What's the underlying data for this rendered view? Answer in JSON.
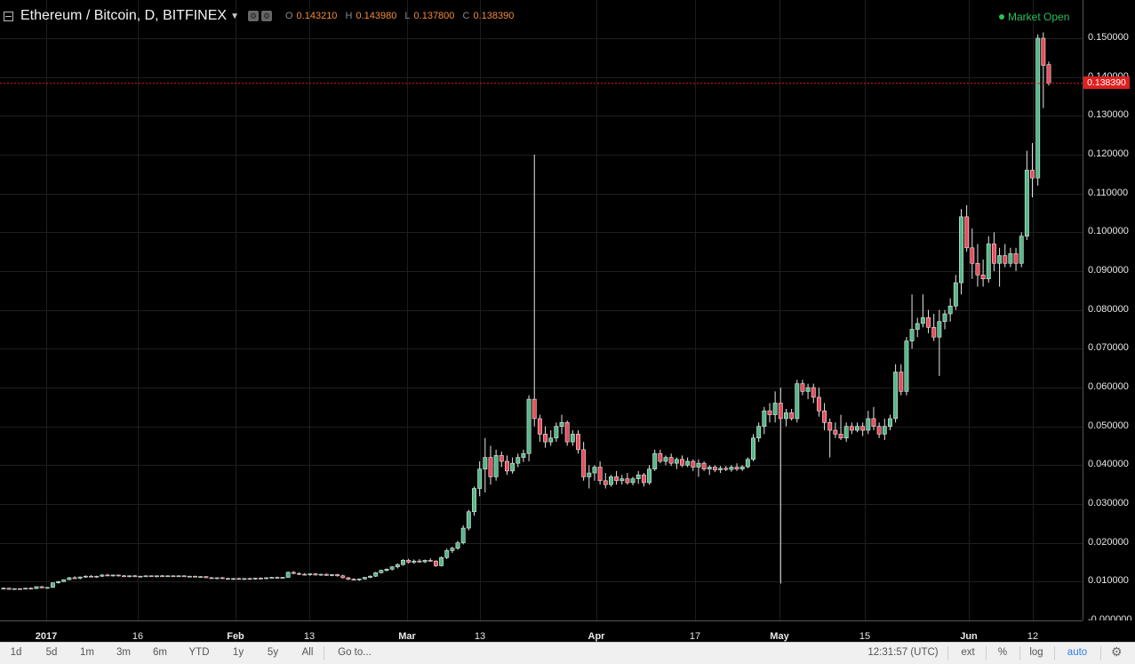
{
  "header": {
    "symbol": "Ethereum / Bitcoin, D, BITFINEX",
    "ohlc": [
      {
        "label": "O",
        "value": "0.143210"
      },
      {
        "label": "H",
        "value": "0.143980"
      },
      {
        "label": "L",
        "value": "0.137800"
      },
      {
        "label": "C",
        "value": "0.138390"
      }
    ],
    "market_status": "Market Open"
  },
  "last_price_label": "0.138390",
  "price_axis_labels": [
    "0.150000",
    "0.140000",
    "0.130000",
    "0.120000",
    "0.110000",
    "0.100000",
    "0.090000",
    "0.080000",
    "0.070000",
    "0.060000",
    "0.050000",
    "0.040000",
    "0.030000",
    "0.020000",
    "0.010000",
    "-0.000000"
  ],
  "time_axis_labels": [
    "2017",
    "16",
    "Feb",
    "13",
    "Mar",
    "13",
    "Apr",
    "17",
    "May",
    "15",
    "Jun",
    "12"
  ],
  "toolbar": {
    "ranges": [
      "1d",
      "5d",
      "1m",
      "3m",
      "6m",
      "YTD",
      "1y",
      "5y",
      "All"
    ],
    "goto": "Go to...",
    "clock": "12:31:57 (UTC)",
    "ext": "ext",
    "percent": "%",
    "log": "log",
    "auto": "auto"
  },
  "colors": {
    "up": "#53b987",
    "down": "#eb4d5c",
    "last_price": "#e01f1f",
    "accent": "#2f7fe6"
  },
  "chart_data": {
    "type": "candlestick",
    "ylim": [
      0,
      0.15
    ],
    "y_ticks": [
      0,
      0.01,
      0.02,
      0.03,
      0.04,
      0.05,
      0.06,
      0.07,
      0.08,
      0.09,
      0.1,
      0.11,
      0.12,
      0.13,
      0.14,
      0.15
    ],
    "x_labels": [
      "2017",
      "16",
      "Feb",
      "13",
      "Mar",
      "13",
      "Apr",
      "17",
      "May",
      "15",
      "Jun",
      "12"
    ],
    "last_close": 0.13839,
    "candles": [
      [
        0.0082,
        0.0085,
        0.008,
        0.0083
      ],
      [
        0.0083,
        0.0084,
        0.0079,
        0.008
      ],
      [
        0.008,
        0.0083,
        0.0079,
        0.0082
      ],
      [
        0.0082,
        0.0083,
        0.008,
        0.0081
      ],
      [
        0.0081,
        0.0084,
        0.008,
        0.0083
      ],
      [
        0.0083,
        0.0085,
        0.0081,
        0.0082
      ],
      [
        0.0082,
        0.0088,
        0.0081,
        0.0087
      ],
      [
        0.0087,
        0.0089,
        0.0083,
        0.0084
      ],
      [
        0.0084,
        0.0086,
        0.0082,
        0.0085
      ],
      [
        0.0085,
        0.0098,
        0.0084,
        0.0097
      ],
      [
        0.0097,
        0.0102,
        0.0095,
        0.01
      ],
      [
        0.01,
        0.0106,
        0.0099,
        0.0105
      ],
      [
        0.0105,
        0.0112,
        0.0104,
        0.011
      ],
      [
        0.011,
        0.0114,
        0.0107,
        0.0109
      ],
      [
        0.0109,
        0.0113,
        0.0106,
        0.0112
      ],
      [
        0.0112,
        0.0116,
        0.011,
        0.0114
      ],
      [
        0.0114,
        0.0117,
        0.0111,
        0.0113
      ],
      [
        0.0113,
        0.0115,
        0.011,
        0.0114
      ],
      [
        0.0114,
        0.0119,
        0.0112,
        0.0117
      ],
      [
        0.0117,
        0.012,
        0.0114,
        0.0116
      ],
      [
        0.0116,
        0.0118,
        0.0113,
        0.0117
      ],
      [
        0.0117,
        0.0118,
        0.0113,
        0.0115
      ],
      [
        0.0115,
        0.0117,
        0.0112,
        0.0114
      ],
      [
        0.0114,
        0.0116,
        0.0111,
        0.0115
      ],
      [
        0.0115,
        0.0117,
        0.0112,
        0.0113
      ],
      [
        0.0113,
        0.0115,
        0.0111,
        0.0114
      ],
      [
        0.0114,
        0.0116,
        0.0112,
        0.0115
      ],
      [
        0.0115,
        0.0116,
        0.0112,
        0.0113
      ],
      [
        0.0113,
        0.0116,
        0.0111,
        0.0115
      ],
      [
        0.0115,
        0.0117,
        0.0113,
        0.0114
      ],
      [
        0.0114,
        0.0116,
        0.0112,
        0.0115
      ],
      [
        0.0115,
        0.0116,
        0.0113,
        0.0114
      ],
      [
        0.0114,
        0.0116,
        0.0112,
        0.0115
      ],
      [
        0.0115,
        0.0116,
        0.0112,
        0.0113
      ],
      [
        0.0113,
        0.0115,
        0.0111,
        0.0114
      ],
      [
        0.0114,
        0.0115,
        0.0111,
        0.0112
      ],
      [
        0.0112,
        0.0114,
        0.011,
        0.0113
      ],
      [
        0.0113,
        0.0114,
        0.0109,
        0.011
      ],
      [
        0.011,
        0.0112,
        0.0107,
        0.0108
      ],
      [
        0.0108,
        0.0111,
        0.0106,
        0.011
      ],
      [
        0.011,
        0.0112,
        0.0107,
        0.0108
      ],
      [
        0.0108,
        0.011,
        0.0105,
        0.0107
      ],
      [
        0.0107,
        0.0109,
        0.0104,
        0.0108
      ],
      [
        0.0108,
        0.011,
        0.0105,
        0.0106
      ],
      [
        0.0106,
        0.0109,
        0.0104,
        0.0108
      ],
      [
        0.0108,
        0.011,
        0.0105,
        0.0107
      ],
      [
        0.0107,
        0.011,
        0.0105,
        0.0109
      ],
      [
        0.0109,
        0.0111,
        0.0106,
        0.0108
      ],
      [
        0.0108,
        0.0111,
        0.0106,
        0.011
      ],
      [
        0.011,
        0.0112,
        0.0108,
        0.0111
      ],
      [
        0.0111,
        0.0113,
        0.0108,
        0.011
      ],
      [
        0.011,
        0.0112,
        0.0108,
        0.0111
      ],
      [
        0.0111,
        0.0126,
        0.011,
        0.0124
      ],
      [
        0.0124,
        0.0127,
        0.0119,
        0.0121
      ],
      [
        0.0121,
        0.0124,
        0.0117,
        0.0119
      ],
      [
        0.0119,
        0.0122,
        0.0116,
        0.0118
      ],
      [
        0.0118,
        0.0121,
        0.0115,
        0.012
      ],
      [
        0.012,
        0.0122,
        0.0116,
        0.0117
      ],
      [
        0.0117,
        0.012,
        0.0115,
        0.0119
      ],
      [
        0.0119,
        0.0121,
        0.0115,
        0.0116
      ],
      [
        0.0116,
        0.0119,
        0.0114,
        0.0118
      ],
      [
        0.0118,
        0.012,
        0.0113,
        0.0115
      ],
      [
        0.0115,
        0.0118,
        0.0108,
        0.011
      ],
      [
        0.011,
        0.0112,
        0.0104,
        0.0106
      ],
      [
        0.0106,
        0.0109,
        0.0103,
        0.0105
      ],
      [
        0.0105,
        0.0108,
        0.0102,
        0.0107
      ],
      [
        0.0107,
        0.0112,
        0.0105,
        0.0111
      ],
      [
        0.0111,
        0.0116,
        0.0109,
        0.0114
      ],
      [
        0.0114,
        0.0125,
        0.0112,
        0.0123
      ],
      [
        0.0123,
        0.0131,
        0.0121,
        0.0129
      ],
      [
        0.0129,
        0.0134,
        0.0126,
        0.0132
      ],
      [
        0.0132,
        0.014,
        0.0129,
        0.0138
      ],
      [
        0.0138,
        0.0147,
        0.0134,
        0.0144
      ],
      [
        0.0144,
        0.0158,
        0.0141,
        0.0155
      ],
      [
        0.0155,
        0.0159,
        0.0147,
        0.015
      ],
      [
        0.015,
        0.0157,
        0.0146,
        0.0153
      ],
      [
        0.0153,
        0.0158,
        0.0149,
        0.0151
      ],
      [
        0.0151,
        0.0157,
        0.0148,
        0.0155
      ],
      [
        0.0155,
        0.016,
        0.0151,
        0.0153
      ],
      [
        0.0153,
        0.0155,
        0.0138,
        0.0141
      ],
      [
        0.0141,
        0.0165,
        0.0139,
        0.0162
      ],
      [
        0.0162,
        0.0185,
        0.0158,
        0.018
      ],
      [
        0.018,
        0.019,
        0.0174,
        0.0186
      ],
      [
        0.0186,
        0.0205,
        0.0182,
        0.02
      ],
      [
        0.02,
        0.0245,
        0.0196,
        0.0238
      ],
      [
        0.0238,
        0.0285,
        0.0232,
        0.028
      ],
      [
        0.028,
        0.0345,
        0.027,
        0.034
      ],
      [
        0.034,
        0.041,
        0.032,
        0.039
      ],
      [
        0.039,
        0.047,
        0.033,
        0.042
      ],
      [
        0.042,
        0.045,
        0.035,
        0.037
      ],
      [
        0.037,
        0.044,
        0.036,
        0.0425
      ],
      [
        0.0425,
        0.0435,
        0.0395,
        0.041
      ],
      [
        0.041,
        0.0425,
        0.0375,
        0.0385
      ],
      [
        0.0385,
        0.042,
        0.0378,
        0.0405
      ],
      [
        0.0405,
        0.043,
        0.0395,
        0.042
      ],
      [
        0.042,
        0.044,
        0.0408,
        0.043
      ],
      [
        0.043,
        0.058,
        0.041,
        0.057
      ],
      [
        0.057,
        0.12,
        0.05,
        0.052
      ],
      [
        0.052,
        0.053,
        0.046,
        0.048
      ],
      [
        0.048,
        0.05,
        0.0445,
        0.046
      ],
      [
        0.046,
        0.049,
        0.045,
        0.047
      ],
      [
        0.047,
        0.051,
        0.046,
        0.05
      ],
      [
        0.05,
        0.053,
        0.048,
        0.051
      ],
      [
        0.051,
        0.0515,
        0.045,
        0.046
      ],
      [
        0.046,
        0.049,
        0.045,
        0.048
      ],
      [
        0.048,
        0.049,
        0.043,
        0.044
      ],
      [
        0.044,
        0.046,
        0.036,
        0.037
      ],
      [
        0.037,
        0.04,
        0.034,
        0.038
      ],
      [
        0.038,
        0.04,
        0.036,
        0.0395
      ],
      [
        0.0395,
        0.041,
        0.035,
        0.036
      ],
      [
        0.036,
        0.038,
        0.034,
        0.035
      ],
      [
        0.035,
        0.0375,
        0.0345,
        0.037
      ],
      [
        0.037,
        0.0385,
        0.035,
        0.036
      ],
      [
        0.036,
        0.0375,
        0.035,
        0.0365
      ],
      [
        0.0365,
        0.038,
        0.035,
        0.0355
      ],
      [
        0.0355,
        0.037,
        0.0348,
        0.0365
      ],
      [
        0.0365,
        0.0385,
        0.0352,
        0.0375
      ],
      [
        0.0375,
        0.038,
        0.0345,
        0.0355
      ],
      [
        0.0355,
        0.04,
        0.035,
        0.039
      ],
      [
        0.039,
        0.044,
        0.0385,
        0.043
      ],
      [
        0.043,
        0.044,
        0.0405,
        0.041
      ],
      [
        0.041,
        0.0425,
        0.04,
        0.042
      ],
      [
        0.042,
        0.043,
        0.0398,
        0.0405
      ],
      [
        0.0405,
        0.042,
        0.039,
        0.0415
      ],
      [
        0.0415,
        0.0425,
        0.0395,
        0.04
      ],
      [
        0.04,
        0.042,
        0.0395,
        0.041
      ],
      [
        0.041,
        0.0415,
        0.0385,
        0.0395
      ],
      [
        0.0395,
        0.0415,
        0.037,
        0.0405
      ],
      [
        0.0405,
        0.041,
        0.0385,
        0.039
      ],
      [
        0.039,
        0.04,
        0.0375,
        0.0395
      ],
      [
        0.0395,
        0.04,
        0.0382,
        0.0388
      ],
      [
        0.0388,
        0.0398,
        0.038,
        0.0392
      ],
      [
        0.0392,
        0.0398,
        0.0385,
        0.0389
      ],
      [
        0.0389,
        0.04,
        0.0383,
        0.0395
      ],
      [
        0.0395,
        0.0405,
        0.0385,
        0.039
      ],
      [
        0.039,
        0.04,
        0.0385,
        0.0396
      ],
      [
        0.0396,
        0.042,
        0.0392,
        0.0415
      ],
      [
        0.0415,
        0.048,
        0.041,
        0.047
      ],
      [
        0.047,
        0.051,
        0.046,
        0.05
      ],
      [
        0.05,
        0.055,
        0.048,
        0.054
      ],
      [
        0.054,
        0.056,
        0.051,
        0.053
      ],
      [
        0.053,
        0.059,
        0.051,
        0.056
      ],
      [
        0.056,
        0.06,
        0.0095,
        0.052
      ],
      [
        0.052,
        0.0545,
        0.05,
        0.0535
      ],
      [
        0.0535,
        0.0545,
        0.0515,
        0.052
      ],
      [
        0.052,
        0.062,
        0.051,
        0.061
      ],
      [
        0.061,
        0.062,
        0.058,
        0.059
      ],
      [
        0.059,
        0.061,
        0.057,
        0.06
      ],
      [
        0.06,
        0.061,
        0.056,
        0.0575
      ],
      [
        0.0575,
        0.06,
        0.0525,
        0.054
      ],
      [
        0.054,
        0.056,
        0.049,
        0.051
      ],
      [
        0.051,
        0.052,
        0.042,
        0.049
      ],
      [
        0.049,
        0.051,
        0.047,
        0.048
      ],
      [
        0.048,
        0.053,
        0.0465,
        0.047
      ],
      [
        0.047,
        0.051,
        0.046,
        0.05
      ],
      [
        0.05,
        0.051,
        0.048,
        0.049
      ],
      [
        0.049,
        0.051,
        0.0485,
        0.05
      ],
      [
        0.05,
        0.051,
        0.0475,
        0.049
      ],
      [
        0.049,
        0.054,
        0.048,
        0.052
      ],
      [
        0.052,
        0.055,
        0.049,
        0.05
      ],
      [
        0.05,
        0.051,
        0.047,
        0.048
      ],
      [
        0.048,
        0.052,
        0.0465,
        0.05
      ],
      [
        0.05,
        0.053,
        0.049,
        0.052
      ],
      [
        0.052,
        0.066,
        0.051,
        0.064
      ],
      [
        0.064,
        0.066,
        0.058,
        0.059
      ],
      [
        0.059,
        0.073,
        0.058,
        0.072
      ],
      [
        0.072,
        0.084,
        0.07,
        0.075
      ],
      [
        0.075,
        0.078,
        0.073,
        0.0765
      ],
      [
        0.0765,
        0.084,
        0.0755,
        0.078
      ],
      [
        0.078,
        0.08,
        0.074,
        0.0755
      ],
      [
        0.0755,
        0.079,
        0.072,
        0.073
      ],
      [
        0.073,
        0.08,
        0.063,
        0.077
      ],
      [
        0.077,
        0.08,
        0.075,
        0.079
      ],
      [
        0.079,
        0.083,
        0.077,
        0.081
      ],
      [
        0.081,
        0.089,
        0.08,
        0.087
      ],
      [
        0.087,
        0.106,
        0.084,
        0.104
      ],
      [
        0.104,
        0.107,
        0.095,
        0.096
      ],
      [
        0.096,
        0.101,
        0.088,
        0.092
      ],
      [
        0.092,
        0.097,
        0.086,
        0.089
      ],
      [
        0.089,
        0.093,
        0.086,
        0.088
      ],
      [
        0.088,
        0.099,
        0.087,
        0.097
      ],
      [
        0.097,
        0.1,
        0.09,
        0.092
      ],
      [
        0.092,
        0.096,
        0.086,
        0.094
      ],
      [
        0.094,
        0.097,
        0.091,
        0.092
      ],
      [
        0.092,
        0.096,
        0.091,
        0.0945
      ],
      [
        0.0945,
        0.096,
        0.09,
        0.092
      ],
      [
        0.092,
        0.1,
        0.091,
        0.099
      ],
      [
        0.099,
        0.121,
        0.098,
        0.116
      ],
      [
        0.116,
        0.123,
        0.109,
        0.114
      ],
      [
        0.114,
        0.151,
        0.112,
        0.15
      ],
      [
        0.15,
        0.1515,
        0.132,
        0.143
      ],
      [
        0.1432,
        0.144,
        0.1378,
        0.1384
      ]
    ]
  }
}
